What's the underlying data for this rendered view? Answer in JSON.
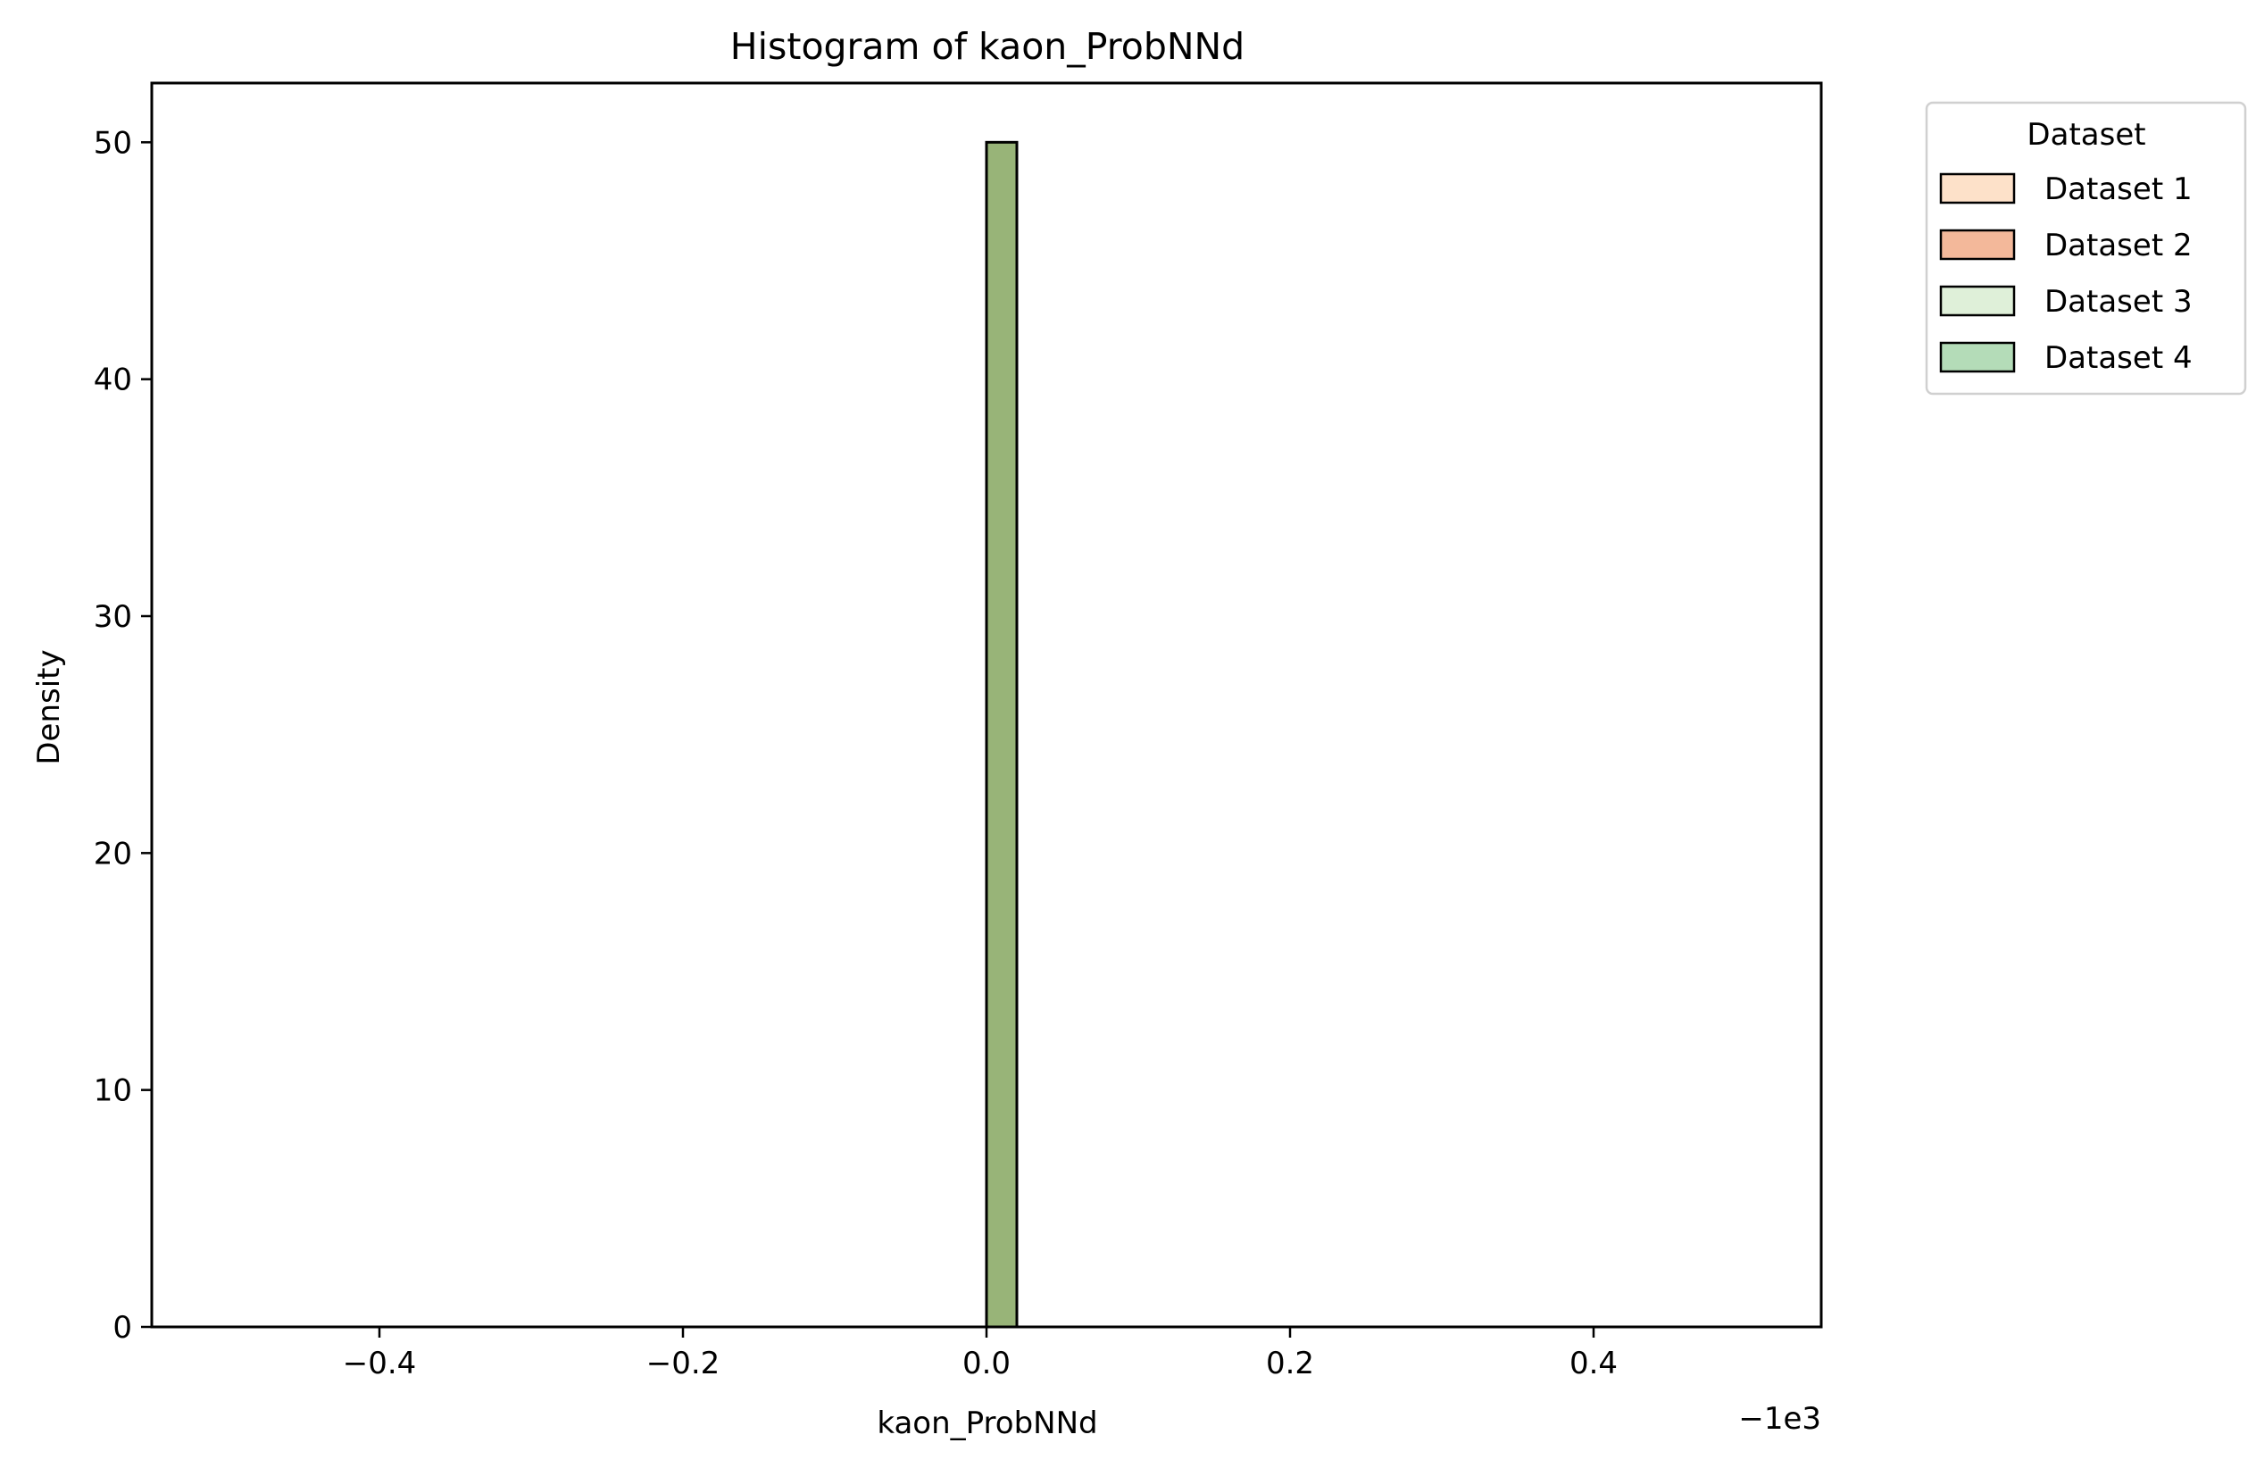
{
  "chart_data": {
    "type": "bar",
    "title": "Histogram of kaon_ProbNNd",
    "xlabel": "kaon_ProbNNd",
    "ylabel": "Density",
    "x_offset_label": "−1e3",
    "xlim": [
      -0.55,
      0.55
    ],
    "ylim": [
      0,
      52.5
    ],
    "xticks": [
      -0.4,
      -0.2,
      0.0,
      0.2,
      0.4
    ],
    "xtick_labels": [
      "−0.4",
      "−0.2",
      "0.0",
      "0.2",
      "0.4"
    ],
    "yticks": [
      0,
      10,
      20,
      30,
      40,
      50
    ],
    "ytick_labels": [
      "0",
      "10",
      "20",
      "30",
      "40",
      "50"
    ],
    "baseline_range": [
      -0.5,
      0.5
    ],
    "bins": [
      {
        "x0": 0.0,
        "x1": 0.02,
        "height": 50,
        "color": "#98b478"
      }
    ],
    "legend": {
      "title": "Dataset",
      "placement": "outside-top-right",
      "items": [
        {
          "label": "Dataset 1",
          "color": "#fde1c9"
        },
        {
          "label": "Dataset 2",
          "color": "#f3b89a"
        },
        {
          "label": "Dataset 3",
          "color": "#dff0d9"
        },
        {
          "label": "Dataset 4",
          "color": "#b4dcb8"
        }
      ]
    },
    "grid": false
  }
}
